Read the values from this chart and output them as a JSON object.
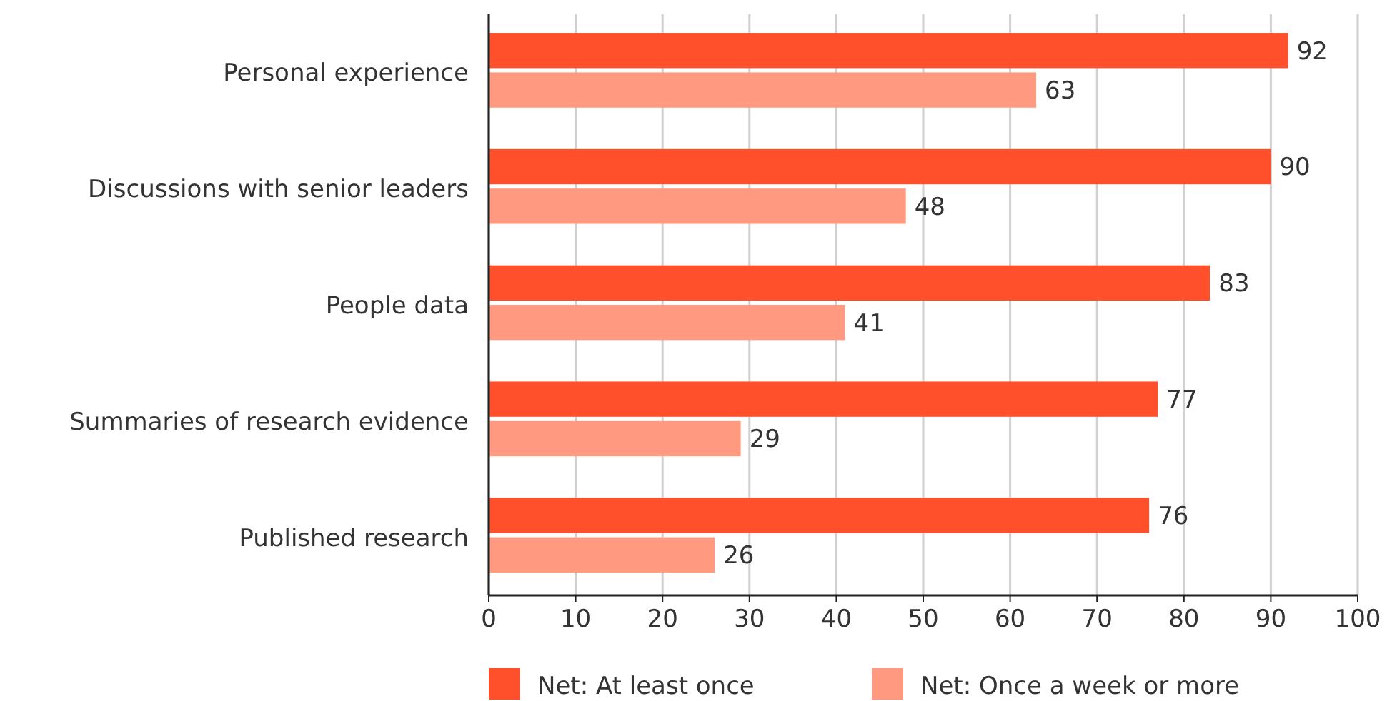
{
  "chart_data": {
    "type": "bar",
    "orientation": "horizontal",
    "categories": [
      "Personal experience",
      "Discussions with senior leaders",
      "People data",
      "Summaries of research evidence",
      "Published research"
    ],
    "series": [
      {
        "name": "Net: At least once",
        "color": "#ff4f2b",
        "values": [
          92,
          90,
          83,
          77,
          76
        ]
      },
      {
        "name": "Net: Once a week or more",
        "color": "#ff9a80",
        "values": [
          63,
          48,
          41,
          29,
          26
        ]
      }
    ],
    "xlim": [
      0,
      100
    ],
    "xticks": [
      0,
      10,
      20,
      30,
      40,
      50,
      60,
      70,
      80,
      90,
      100
    ],
    "grid": "x",
    "legend": "bottom",
    "data_labels": true
  }
}
